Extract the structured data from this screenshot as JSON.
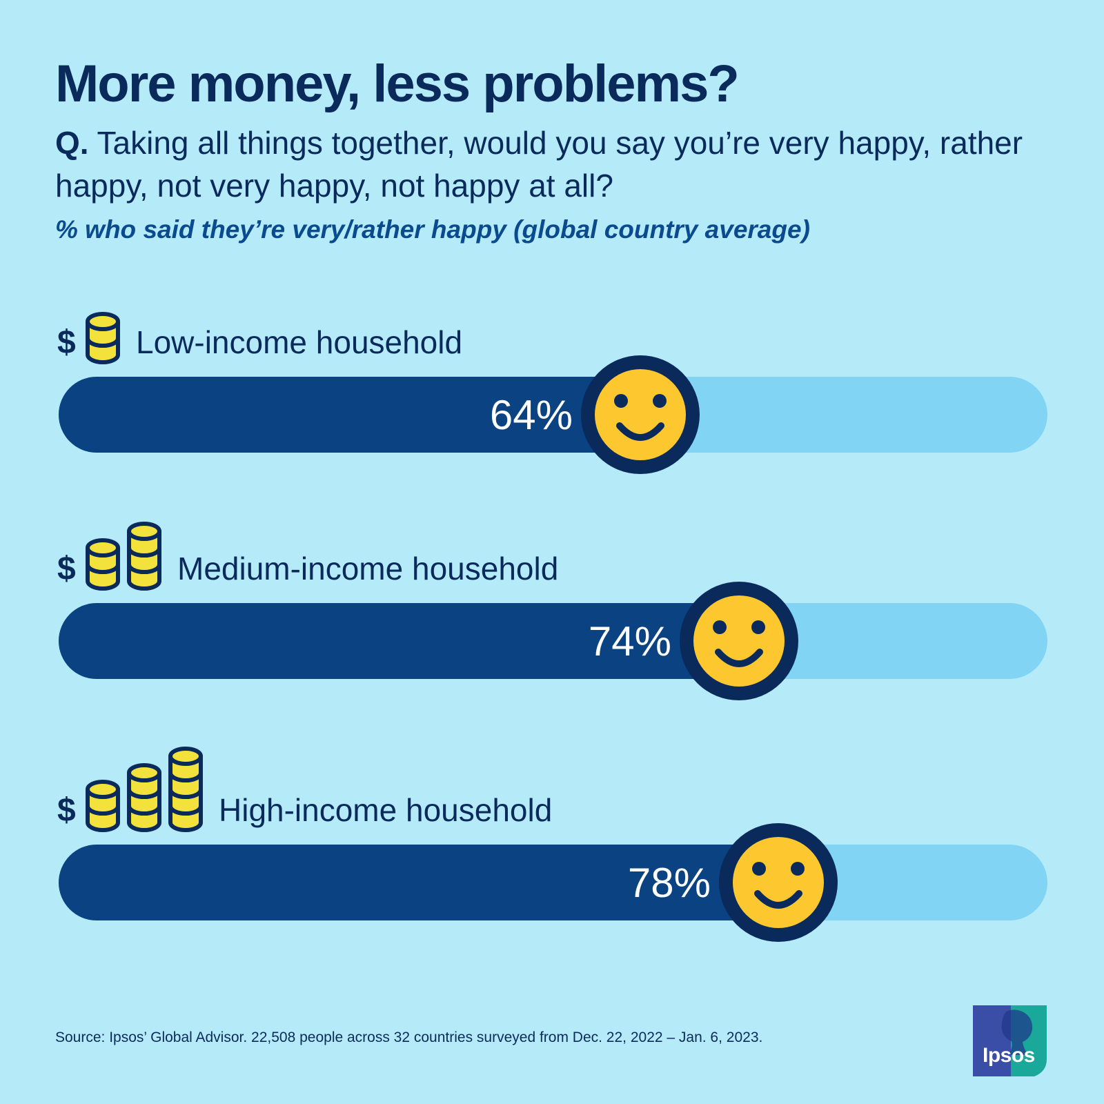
{
  "header": {
    "title": "More money, less problems?",
    "question_prefix": "Q.",
    "question_text": "Taking all things together, would you say you’re very happy, rather happy, not very happy, not happy at all?",
    "subtitle": "% who said they’re very/rather happy (global country average)"
  },
  "chart_data": {
    "type": "bar",
    "orientation": "horizontal",
    "categories": [
      "Low-income household",
      "Medium-income household",
      "High-income household"
    ],
    "values": [
      64,
      74,
      78
    ],
    "value_labels": [
      "64%",
      "74%",
      "78%"
    ],
    "coin_stacks": [
      1,
      2,
      3
    ],
    "currency_symbol": "$",
    "xlim": [
      0,
      100
    ],
    "grid": false,
    "colors": {
      "fill": "#0a4282",
      "track": "#82d4f5",
      "smiley": "#fdc82f",
      "coin": "#f3e23b",
      "outline": "#0b2a5c"
    }
  },
  "footer": {
    "source": "Source: Ipsos’ Global Advisor. 22,508 people across 32 countries surveyed from Dec. 22, 2022 – Jan. 6, 2023.",
    "logo_text": "Ipsos"
  }
}
